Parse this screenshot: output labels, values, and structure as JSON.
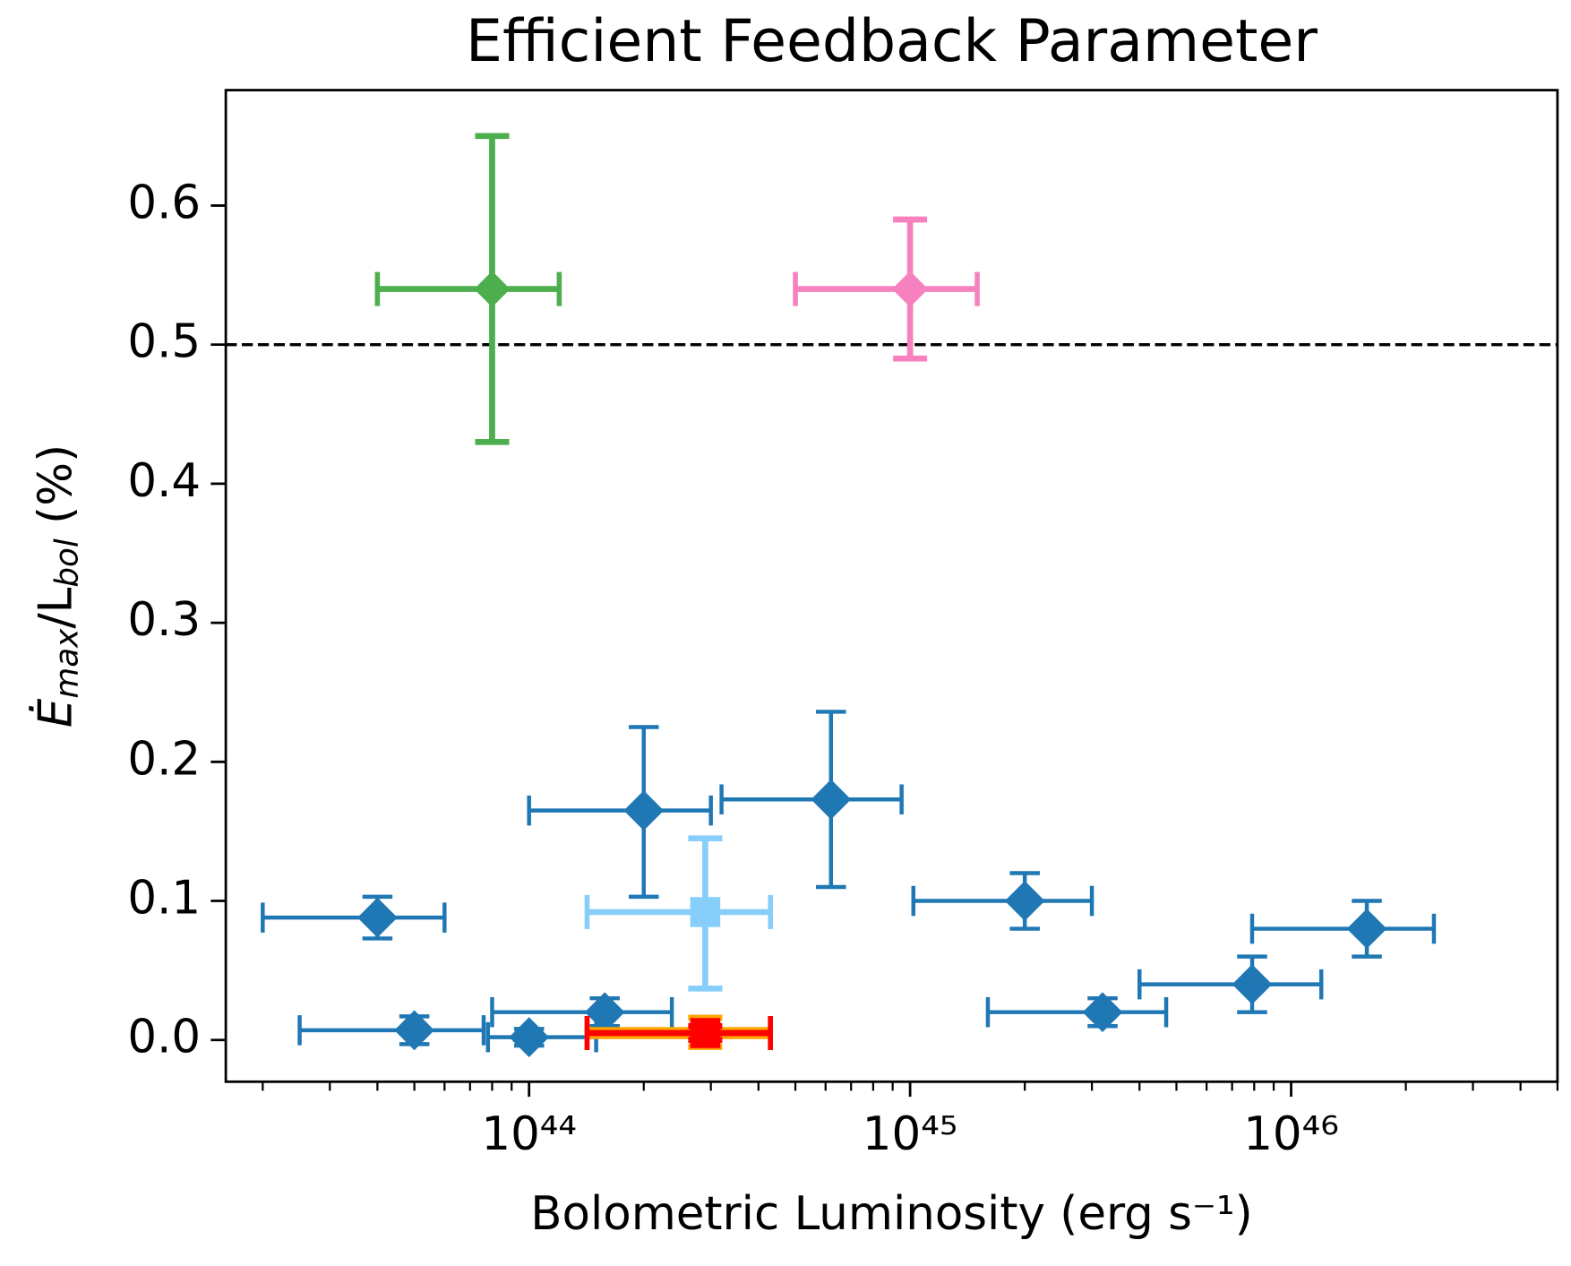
{
  "chart_data": {
    "type": "scatter",
    "title": "Efficient Feedback Parameter",
    "xlabel": "Bolometric Luminosity (erg s⁻¹)",
    "ylabel": [
      "Ė",
      "max",
      "/L",
      "bol",
      " (%)"
    ],
    "xscale": "log",
    "minor_ticks": true,
    "xlim": [
      1.6e+43,
      5e+46
    ],
    "ylim": [
      -0.03,
      0.683
    ],
    "xticks": [
      {
        "value": 1e+44,
        "label": "10⁴⁴"
      },
      {
        "value": 1e+45,
        "label": "10⁴⁵"
      },
      {
        "value": 1e+46,
        "label": "10⁴⁶"
      }
    ],
    "yticks": [
      {
        "value": 0,
        "label": "0.0"
      },
      0.1,
      0.2,
      0.3,
      0.4,
      0.5,
      0.6
    ],
    "hline": {
      "y": 0.5,
      "color": "#000000",
      "style": "dashed"
    },
    "series": [
      {
        "color": "#1f77b4",
        "marker": "diamond",
        "x": [
          4e+43,
          5e+43,
          1e+44,
          1.58e+44,
          2e+44,
          6.2e+44,
          2e+45,
          3.2e+45,
          7.9e+45,
          1.58e+46
        ],
        "values": [
          0.088,
          0.007,
          0.002,
          0.02,
          0.165,
          0.173,
          0.1,
          0.02,
          0.04,
          0.08
        ],
        "xlow": [
          2e+43,
          2.5e+43,
          7.8e+43,
          8e+43,
          1e+44,
          3.2e+44,
          1.02e+45,
          1.6e+45,
          4e+45,
          7.9e+45
        ],
        "xhigh": [
          6e+43,
          7.6e+43,
          1.5e+44,
          2.37e+44,
          3e+44,
          9.5e+44,
          3e+45,
          4.7e+45,
          1.2e+46,
          2.37e+46
        ],
        "ylow": [
          0.073,
          -0.003,
          -0.004,
          0.01,
          0.103,
          0.11,
          0.08,
          0.01,
          0.02,
          0.06
        ],
        "yhigh": [
          0.103,
          0.017,
          0.008,
          0.03,
          0.225,
          0.236,
          0.12,
          0.03,
          0.06,
          0.1
        ]
      },
      {
        "color": "#4cae4c",
        "marker": "diamond",
        "x": [
          8e+43
        ],
        "values": [
          0.54
        ],
        "xlow": [
          4e+43
        ],
        "xhigh": [
          1.2e+44
        ],
        "ylow": [
          0.43
        ],
        "yhigh": [
          0.65
        ]
      },
      {
        "color": "#f781bf",
        "marker": "diamond",
        "x": [
          1e+45
        ],
        "values": [
          0.54
        ],
        "xlow": [
          5e+44
        ],
        "xhigh": [
          1.5e+45
        ],
        "ylow": [
          0.49
        ],
        "yhigh": [
          0.59
        ]
      },
      {
        "color": "#87cefa",
        "marker": "square",
        "x": [
          2.9e+44
        ],
        "values": [
          0.092
        ],
        "xlow": [
          1.42e+44
        ],
        "xhigh": [
          4.3e+44
        ],
        "ylow": [
          0.037
        ],
        "yhigh": [
          0.145
        ]
      },
      {
        "color": "#ffa500",
        "marker": "square",
        "x": [
          2.9e+44
        ],
        "values": [
          0.005
        ],
        "xlow": [
          1.42e+44
        ],
        "xhigh": [
          4.3e+44
        ],
        "ylow": [
          -0.005
        ],
        "yhigh": [
          0.016
        ]
      },
      {
        "color": "#ff0000",
        "marker": "square",
        "x": [
          2.9e+44
        ],
        "values": [
          0.005
        ],
        "xlow": [
          1.42e+44
        ],
        "xhigh": [
          4.3e+44
        ],
        "ylow": [
          0.0
        ],
        "yhigh": [
          0.01
        ]
      }
    ]
  }
}
